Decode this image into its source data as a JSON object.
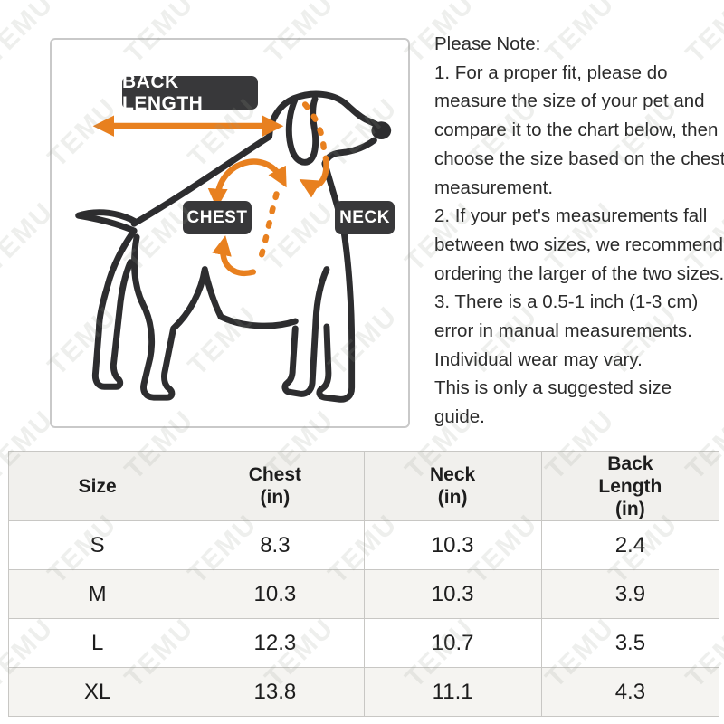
{
  "watermark": {
    "text": "TEMU"
  },
  "diagram": {
    "labels": {
      "back_length": "BACK LENGTH",
      "chest": "CHEST",
      "neck": "NECK"
    },
    "colors": {
      "accent_orange": "#E8801F",
      "label_bg": "#38383A",
      "label_text": "#FFFFFF",
      "outline": "#2D2D2F"
    }
  },
  "note": {
    "lines": [
      "Please Note:",
      "1. For a proper fit, please do",
      "measure the size of your pet and",
      "compare it to the chart below, then",
      "choose the size based on the chest",
      "measurement.",
      "2. If your pet's measurements fall",
      "between two sizes, we recommend",
      "ordering the larger of the two sizes.",
      "3. There is a 0.5-1 inch (1-3 cm)",
      "error in manual measurements.",
      "Individual wear may vary.",
      "This is only a suggested size guide."
    ]
  },
  "table": {
    "columns": [
      {
        "lines": [
          "Size"
        ]
      },
      {
        "lines": [
          "Chest",
          "(in)"
        ]
      },
      {
        "lines": [
          "Neck",
          "(in)"
        ]
      },
      {
        "lines": [
          "Back",
          "Length",
          "(in)"
        ]
      }
    ],
    "rows": [
      {
        "size": "S",
        "chest": "8.3",
        "neck": "10.3",
        "back_length": "2.4"
      },
      {
        "size": "M",
        "chest": "10.3",
        "neck": "10.3",
        "back_length": "3.9"
      },
      {
        "size": "L",
        "chest": "12.3",
        "neck": "10.7",
        "back_length": "3.5"
      },
      {
        "size": "XL",
        "chest": "13.8",
        "neck": "11.1",
        "back_length": "4.3"
      }
    ]
  }
}
